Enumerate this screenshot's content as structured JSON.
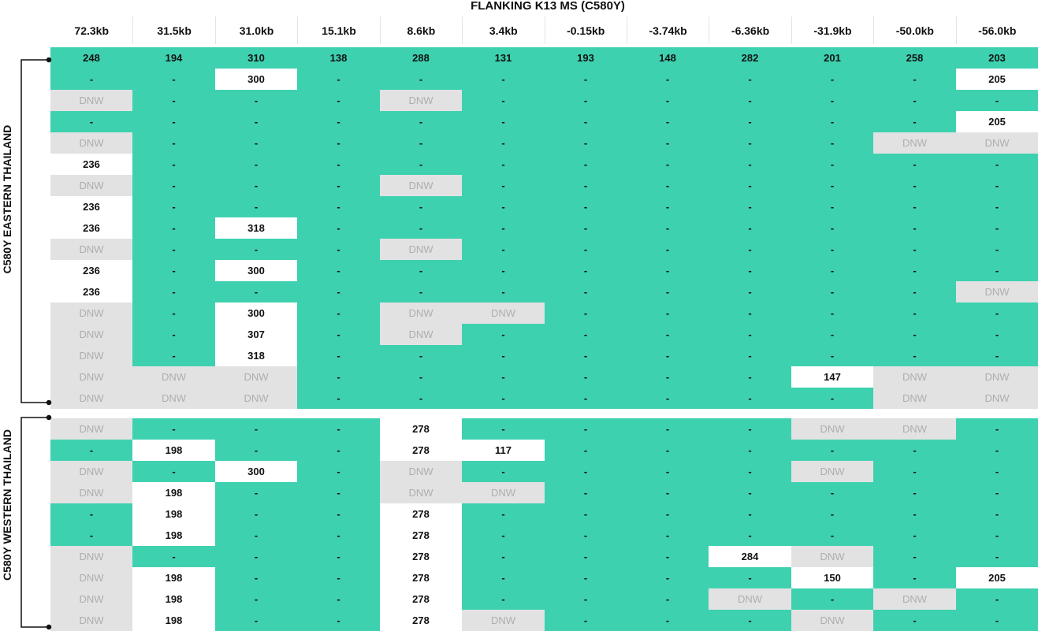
{
  "title": "FLANKING K13 MS (C580Y)",
  "columns": [
    "72.3kb",
    "31.5kb",
    "31.0kb",
    "15.1kb",
    "8.6kb",
    "3.4kb",
    "-0.15kb",
    "-3.74kb",
    "-6.36kb",
    "-31.9kb",
    "-50.0kb",
    "-56.0kb"
  ],
  "colors": {
    "teal": "#3ed1b0",
    "white": "#ffffff",
    "grey": "#e2e2e2",
    "grey_text": "#aeaeae"
  },
  "groups": [
    {
      "label": "C580Y EASTERN THAILAND",
      "rows": [
        [
          "t:248",
          "t:194",
          "t:310",
          "t:138",
          "t:288",
          "t:131",
          "t:193",
          "t:148",
          "t:282",
          "t:201",
          "t:258",
          "t:203"
        ],
        [
          "t:-",
          "t:-",
          "w:300",
          "t:-",
          "t:-",
          "t:-",
          "t:-",
          "t:-",
          "t:-",
          "t:-",
          "t:-",
          "w:205"
        ],
        [
          "g:DNW",
          "t:-",
          "t:-",
          "t:-",
          "g:DNW",
          "t:-",
          "t:-",
          "t:-",
          "t:-",
          "t:-",
          "t:-",
          "t:-"
        ],
        [
          "t:-",
          "t:-",
          "t:-",
          "t:-",
          "t:-",
          "t:-",
          "t:-",
          "t:-",
          "t:-",
          "t:-",
          "t:-",
          "w:205"
        ],
        [
          "g:DNW",
          "t:-",
          "t:-",
          "t:-",
          "t:-",
          "t:-",
          "t:-",
          "t:-",
          "t:-",
          "t:-",
          "g:DNW",
          "g:DNW"
        ],
        [
          "w:236",
          "t:-",
          "t:-",
          "t:-",
          "t:-",
          "t:-",
          "t:-",
          "t:-",
          "t:-",
          "t:-",
          "t:-",
          "t:-"
        ],
        [
          "g:DNW",
          "t:-",
          "t:-",
          "t:-",
          "g:DNW",
          "t:-",
          "t:-",
          "t:-",
          "t:-",
          "t:-",
          "t:-",
          "t:-"
        ],
        [
          "w:236",
          "t:-",
          "t:-",
          "t:-",
          "t:-",
          "t:-",
          "t:-",
          "t:-",
          "t:-",
          "t:-",
          "t:-",
          "t:-"
        ],
        [
          "w:236",
          "t:-",
          "w:318",
          "t:-",
          "t:-",
          "t:-",
          "t:-",
          "t:-",
          "t:-",
          "t:-",
          "t:-",
          "t:-"
        ],
        [
          "g:DNW",
          "t:-",
          "t:-",
          "t:-",
          "g:DNW",
          "t:-",
          "t:-",
          "t:-",
          "t:-",
          "t:-",
          "t:-",
          "t:-"
        ],
        [
          "w:236",
          "t:-",
          "w:300",
          "t:-",
          "t:-",
          "t:-",
          "t:-",
          "t:-",
          "t:-",
          "t:-",
          "t:-",
          "t:-"
        ],
        [
          "w:236",
          "t:-",
          "t:-",
          "t:-",
          "t:-",
          "t:-",
          "t:-",
          "t:-",
          "t:-",
          "t:-",
          "t:-",
          "g:DNW"
        ],
        [
          "g:DNW",
          "t:-",
          "w:300",
          "t:-",
          "g:DNW",
          "g:DNW",
          "t:-",
          "t:-",
          "t:-",
          "t:-",
          "t:-",
          "t:-"
        ],
        [
          "g:DNW",
          "t:-",
          "w:307",
          "t:-",
          "g:DNW",
          "t:-",
          "t:-",
          "t:-",
          "t:-",
          "t:-",
          "t:-",
          "t:-"
        ],
        [
          "g:DNW",
          "t:-",
          "w:318",
          "t:-",
          "t:-",
          "t:-",
          "t:-",
          "t:-",
          "t:-",
          "t:-",
          "t:-",
          "t:-"
        ],
        [
          "g:DNW",
          "g:DNW",
          "g:DNW",
          "t:-",
          "t:-",
          "t:-",
          "t:-",
          "t:-",
          "t:-",
          "w:147",
          "g:DNW",
          "g:DNW"
        ],
        [
          "g:DNW",
          "g:DNW",
          "g:DNW",
          "t:-",
          "t:-",
          "t:-",
          "t:-",
          "t:-",
          "t:-",
          "t:-",
          "g:DNW",
          "g:DNW"
        ]
      ]
    },
    {
      "label": "C580Y WESTERN THAILAND",
      "rows": [
        [
          "g:DNW",
          "t:-",
          "t:-",
          "t:-",
          "w:278",
          "t:-",
          "t:-",
          "t:-",
          "t:-",
          "g:DNW",
          "g:DNW",
          "t:-"
        ],
        [
          "t:-",
          "w:198",
          "t:-",
          "t:-",
          "w:278",
          "w:117",
          "t:-",
          "t:-",
          "t:-",
          "t:-",
          "t:-",
          "t:-"
        ],
        [
          "g:DNW",
          "t:-",
          "w:300",
          "t:-",
          "g:DNW",
          "t:-",
          "t:-",
          "t:-",
          "t:-",
          "g:DNW",
          "t:-",
          "t:-"
        ],
        [
          "g:DNW",
          "w:198",
          "t:-",
          "t:-",
          "g:DNW",
          "g:DNW",
          "t:-",
          "t:-",
          "t:-",
          "t:-",
          "t:-",
          "t:-"
        ],
        [
          "t:-",
          "w:198",
          "t:-",
          "t:-",
          "w:278",
          "t:-",
          "t:-",
          "t:-",
          "t:-",
          "t:-",
          "t:-",
          "t:-"
        ],
        [
          "t:-",
          "w:198",
          "t:-",
          "t:-",
          "w:278",
          "t:-",
          "t:-",
          "t:-",
          "t:-",
          "t:-",
          "t:-",
          "t:-"
        ],
        [
          "g:DNW",
          "t:-",
          "t:-",
          "t:-",
          "w:278",
          "t:-",
          "t:-",
          "t:-",
          "w:284",
          "g:DNW",
          "t:-",
          "t:-"
        ],
        [
          "g:DNW",
          "w:198",
          "t:-",
          "t:-",
          "w:278",
          "t:-",
          "t:-",
          "t:-",
          "t:-",
          "w:150",
          "t:-",
          "w:205"
        ],
        [
          "g:DNW",
          "w:198",
          "t:-",
          "t:-",
          "w:278",
          "t:-",
          "t:-",
          "t:-",
          "g:DNW",
          "t:-",
          "g:DNW",
          "t:-"
        ],
        [
          "g:DNW",
          "w:198",
          "t:-",
          "t:-",
          "w:278",
          "g:DNW",
          "t:-",
          "t:-",
          "t:-",
          "g:DNW",
          "t:-",
          "t:-"
        ]
      ]
    }
  ]
}
